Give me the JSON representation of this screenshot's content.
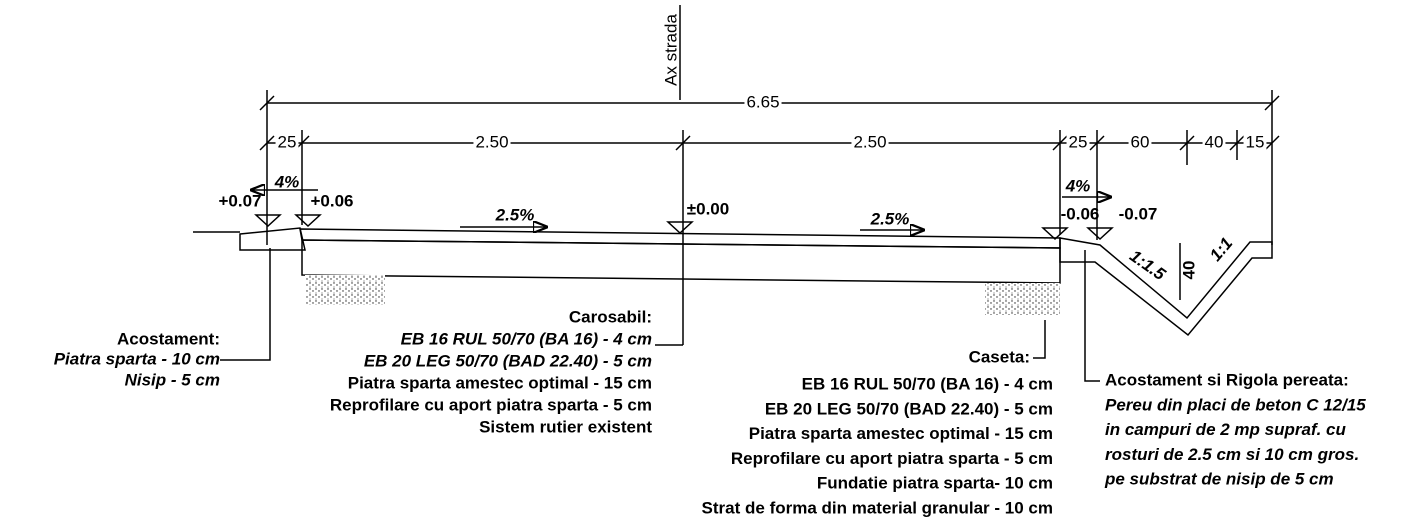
{
  "axis_label": "Ax strada",
  "dimensions": {
    "total": "6.65",
    "segments": [
      "25",
      "2.50",
      "2.50",
      "25",
      "60",
      "40",
      "15"
    ]
  },
  "slopes": [
    "4%",
    "2.5%",
    "2.5%",
    "4%"
  ],
  "elevations": [
    "+0.07",
    "+0.06",
    "±0.00",
    "-0.06",
    "-0.07"
  ],
  "ditch": {
    "slope_left": "1:1.5",
    "depth": "40",
    "slope_right": "1:1"
  },
  "notes": [
    {
      "title": "Acostament:",
      "lines": [
        "Piatra sparta - 10 cm",
        "Nisip - 5 cm"
      ]
    },
    {
      "title": "Carosabil:",
      "lines": [
        "EB 16 RUL 50/70 (BA 16) - 4 cm",
        "EB 20 LEG 50/70 (BAD 22.40) - 5 cm",
        "Piatra sparta amestec optimal - 15 cm",
        "Reprofilare cu aport piatra sparta - 5 cm",
        "Sistem rutier existent"
      ]
    },
    {
      "title": "Caseta:",
      "lines": [
        "EB 16 RUL 50/70 (BA 16) - 4 cm",
        "EB 20 LEG 50/70 (BAD 22.40) - 5 cm",
        "Piatra sparta amestec optimal - 15 cm",
        "Reprofilare cu aport piatra sparta - 5 cm",
        "Fundatie piatra sparta- 10 cm",
        "Strat de forma din material granular - 10 cm"
      ]
    },
    {
      "title": "Acostament si Rigola pereata:",
      "lines": [
        "Pereu din placi de beton C 12/15",
        "in campuri de 2 mp supraf. cu",
        "rosturi de 2.5 cm si 10 cm gros.",
        "pe substrat de nisip de 5 cm"
      ]
    }
  ]
}
